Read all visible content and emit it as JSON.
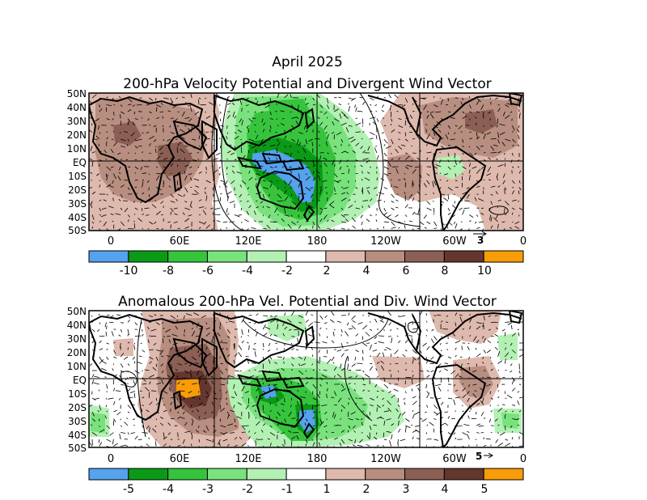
{
  "page": {
    "title": "April 2025"
  },
  "colors": {
    "blue": "#55a2ee",
    "green_dark": "#0b9a17",
    "green_med": "#37c43d",
    "green_light": "#79e27d",
    "green_pale": "#b3f0b3",
    "white": "#ffffff",
    "brown_pale": "#deb9ad",
    "brown_light": "#b78e80",
    "brown_med": "#8c5f55",
    "brown_dark": "#64362e",
    "orange": "#f89c08",
    "land_line": "#000000"
  },
  "map_axes": {
    "lat_labels": [
      "50N",
      "40N",
      "30N",
      "20N",
      "10N",
      "EQ",
      "10S",
      "20S",
      "30S",
      "40S",
      "50S"
    ],
    "lon_labels": [
      "0",
      "60E",
      "120E",
      "180",
      "120W",
      "60W",
      "0"
    ]
  },
  "panels": [
    {
      "id": "total",
      "title": "200-hPa Velocity Potential and Divergent Wind Vector",
      "ref_vector": "3",
      "colorbar": {
        "labels": [
          "-10",
          "-8",
          "-6",
          "-4",
          "-2",
          "2",
          "4",
          "6",
          "8",
          "10"
        ],
        "colors": [
          "#55a2ee",
          "#0b9a17",
          "#37c43d",
          "#79e27d",
          "#b3f0b3",
          "#ffffff",
          "#deb9ad",
          "#b78e80",
          "#8c5f55",
          "#64362e",
          "#f89c08"
        ]
      }
    },
    {
      "id": "anomaly",
      "title": "Anomalous 200-hPa Vel. Potential and Div. Wind Vector",
      "ref_vector": "5",
      "colorbar": {
        "labels": [
          "-5",
          "-4",
          "-3",
          "-2",
          "-1",
          "1",
          "2",
          "3",
          "4",
          "5"
        ],
        "colors": [
          "#55a2ee",
          "#0b9a17",
          "#37c43d",
          "#79e27d",
          "#b3f0b3",
          "#ffffff",
          "#deb9ad",
          "#b78e80",
          "#8c5f55",
          "#64362e",
          "#f89c08"
        ]
      }
    }
  ]
}
